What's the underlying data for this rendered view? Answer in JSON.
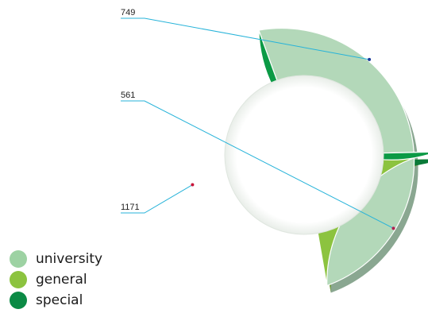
{
  "chart_data": {
    "type": "pie",
    "style": "donut-3d",
    "categories": [
      "university",
      "general",
      "special"
    ],
    "values": [
      1171,
      561,
      749
    ],
    "colors": [
      "#b3d8b9",
      "#8cc33f",
      "#0b9a45"
    ],
    "side_colors": [
      "#8aa791",
      "#6f9a33",
      "#0a7a38"
    ],
    "leader_color": "#27b3d9",
    "dot_colors": [
      "#c8153a",
      "#b0204f",
      "#1b3a9a"
    ],
    "legend": {
      "position": "bottom-left",
      "items": [
        {
          "label": "university",
          "color": "#9dd2a3"
        },
        {
          "label": "general",
          "color": "#8cc33f"
        },
        {
          "label": "special",
          "color": "#0b8a45"
        }
      ]
    }
  }
}
